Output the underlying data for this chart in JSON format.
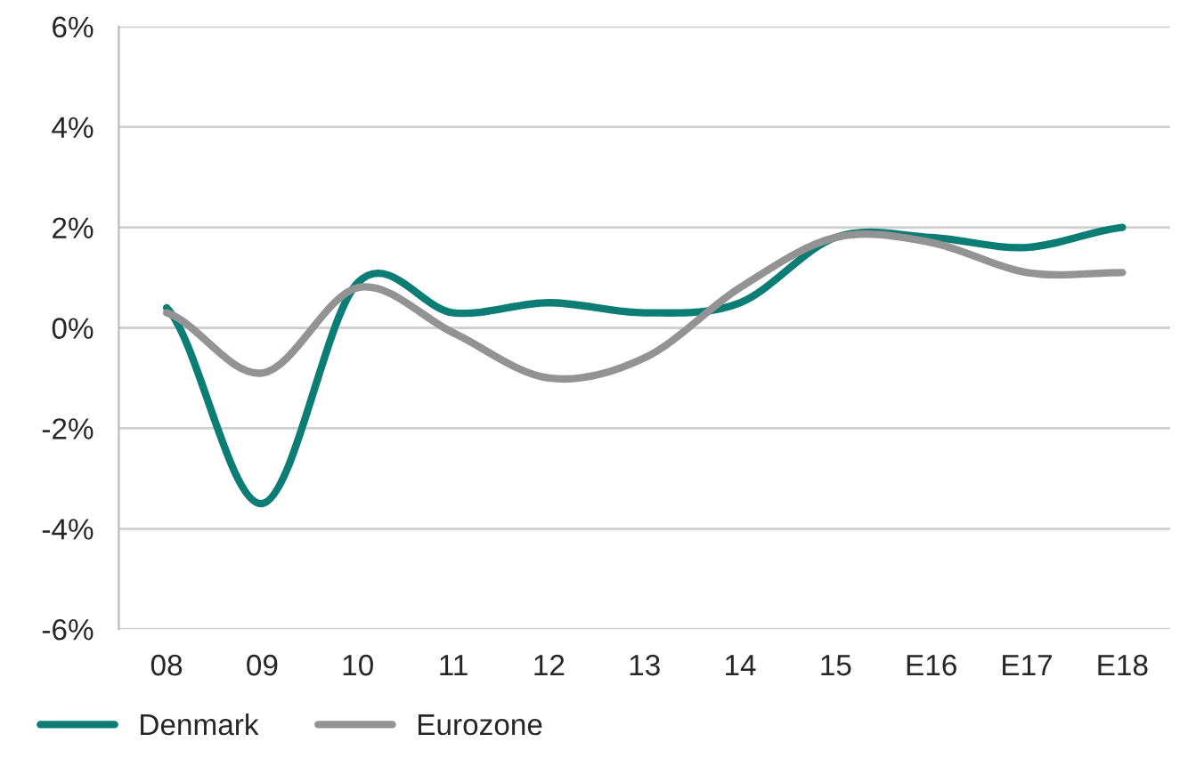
{
  "chart_data": {
    "type": "line",
    "categories": [
      "08",
      "09",
      "10",
      "11",
      "12",
      "13",
      "14",
      "15",
      "E16",
      "E17",
      "E18"
    ],
    "series": [
      {
        "name": "Denmark",
        "color": "#0b7d74",
        "values": [
          0.4,
          -3.5,
          0.9,
          0.3,
          0.5,
          0.3,
          0.5,
          1.8,
          1.8,
          1.6,
          2.0
        ]
      },
      {
        "name": "Eurozone",
        "color": "#939393",
        "values": [
          0.3,
          -0.9,
          0.8,
          -0.1,
          -1.0,
          -0.6,
          0.8,
          1.8,
          1.7,
          1.1,
          1.1
        ]
      }
    ],
    "ylim": [
      -6,
      6
    ],
    "yticks": [
      {
        "value": -6,
        "label": "-6%"
      },
      {
        "value": -4,
        "label": "-4%"
      },
      {
        "value": -2,
        "label": "-2%"
      },
      {
        "value": 0,
        "label": "0%"
      },
      {
        "value": 2,
        "label": "2%"
      },
      {
        "value": 4,
        "label": "4%"
      },
      {
        "value": 6,
        "label": "6%"
      }
    ],
    "grid": "y",
    "legend": "bottom",
    "marker": "none",
    "line_style": "solid"
  }
}
